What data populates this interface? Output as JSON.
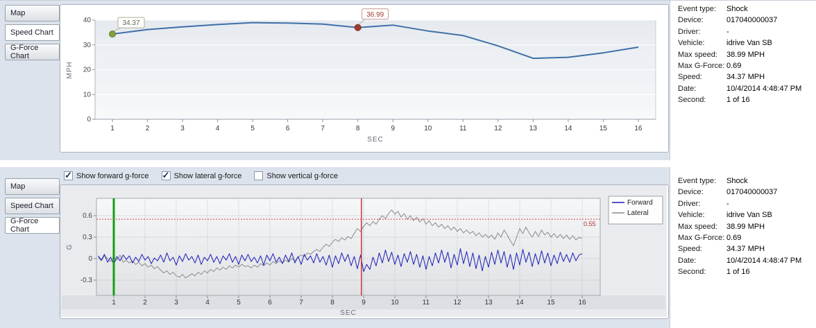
{
  "tabs": [
    "Map",
    "Speed Chart",
    "G-Force Chart"
  ],
  "top_panel": {
    "selected_tab": "Speed Chart"
  },
  "bottom_panel": {
    "selected_tab": "G-Force Chart",
    "checkboxes": [
      {
        "label": "Show forward g-force",
        "checked": true
      },
      {
        "label": "Show lateral g-force",
        "checked": true
      },
      {
        "label": "Show vertical g-force",
        "checked": false
      }
    ]
  },
  "info": {
    "rows": [
      {
        "label": "Event type:",
        "value": "Shock"
      },
      {
        "label": "Device:",
        "value": "017040000037"
      },
      {
        "label": "Driver:",
        "value": "-"
      },
      {
        "label": "Vehicle:",
        "value": "idrive Van SB"
      },
      {
        "label": "Max speed:",
        "value": "38.99 MPH"
      },
      {
        "label": "Max G-Force:",
        "value": "0.69"
      },
      {
        "label": "Speed:",
        "value": "34.37 MPH"
      },
      {
        "label": "Date:",
        "value": "10/4/2014 4:48:47 PM"
      },
      {
        "label": "Second:",
        "value": "1 of 16"
      }
    ]
  },
  "chart_data": [
    {
      "id": "speed",
      "type": "line",
      "title": "",
      "xlabel": "SEC",
      "ylabel": "MPH",
      "ylim": [
        0,
        40
      ],
      "yticks": [
        0,
        10,
        20,
        30,
        40
      ],
      "xticks": [
        1,
        2,
        3,
        4,
        5,
        6,
        7,
        8,
        9,
        10,
        11,
        12,
        13,
        14,
        15,
        16
      ],
      "x": [
        1,
        2,
        3,
        4,
        5,
        6,
        7,
        8,
        9,
        10,
        11,
        12,
        13,
        14,
        15,
        16
      ],
      "values": [
        34.37,
        36.2,
        37.3,
        38.2,
        38.99,
        38.8,
        38.4,
        36.99,
        38.0,
        35.6,
        33.8,
        29.6,
        24.6,
        25.0,
        26.8,
        29.1
      ],
      "line_color": "#3f6fa8",
      "annotations": [
        {
          "x": 1,
          "value": 34.37,
          "label": "34.37",
          "fill": "#82a03c",
          "stroke": "#5f7a2a",
          "box_border": "#a9b293",
          "text_color": "#5f6b4a"
        },
        {
          "x": 8,
          "value": 36.99,
          "label": "36.99",
          "fill": "#a23b32",
          "stroke": "#7c2a23",
          "box_border": "#c9918c",
          "text_color": "#a23b32"
        }
      ]
    },
    {
      "id": "gforce",
      "type": "line",
      "xlabel": "SEC",
      "ylabel": "G",
      "ylim": [
        -0.51,
        0.84
      ],
      "yticks": [
        -0.3,
        0,
        0.3,
        0.6
      ],
      "ytick_labels": [
        "-0.3",
        "0",
        "0.3",
        "0.6"
      ],
      "xticks": [
        1,
        2,
        3,
        4,
        5,
        6,
        7,
        8,
        9,
        10,
        11,
        12,
        13,
        14,
        15,
        16
      ],
      "x_start": 0.5,
      "x_end": 16,
      "legend_position": "right",
      "threshold": {
        "value": 0.55,
        "label": "0.55",
        "color": "#d04040"
      },
      "event_lines": [
        {
          "x": 1,
          "color": "#12a012",
          "width": 3
        },
        {
          "x": 8.93,
          "color": "#d23030",
          "width": 1.5
        }
      ],
      "series": [
        {
          "name": "Forward",
          "color": "#1c1cb8",
          "values": [
            0.04,
            -0.02,
            0.06,
            -0.05,
            0.02,
            -0.08,
            0.03,
            -0.03,
            0.05,
            -0.01,
            0.04,
            -0.06,
            0.02,
            -0.04,
            0.06,
            -0.02,
            0.03,
            -0.07,
            0.01,
            -0.03,
            0.05,
            -0.05,
            0.08,
            -0.03,
            0.02,
            -0.09,
            0.04,
            -0.04,
            0.07,
            -0.02,
            0.03,
            -0.06,
            0.05,
            -0.08,
            0.02,
            -0.03,
            0.06,
            -0.05,
            0.03,
            -0.07,
            0.04,
            -0.02,
            0.07,
            -0.05,
            0.03,
            -0.08,
            0.05,
            -0.03,
            0.06,
            -0.04,
            0.02,
            -0.06,
            0.04,
            -0.09,
            0.05,
            -0.03,
            0.07,
            -0.05,
            0.02,
            -0.07,
            0.05,
            -0.04,
            0.08,
            -0.06,
            0.03,
            -0.08,
            0.06,
            -0.02,
            0.04,
            -0.06,
            0.07,
            -0.05,
            0.03,
            -0.09,
            0.05,
            -0.12,
            0.04,
            -0.07,
            0.08,
            -0.04,
            0.06,
            -0.1,
            0.03,
            -0.14,
            0.05,
            -0.18,
            -0.08,
            -0.15,
            0.02,
            -0.1,
            0.08,
            -0.06,
            0.12,
            -0.04,
            0.09,
            -0.08,
            0.05,
            -0.11,
            0.07,
            -0.05,
            0.1,
            -0.08,
            0.06,
            -0.12,
            0.04,
            -0.15,
            0.03,
            -0.1,
            0.08,
            -0.06,
            0.12,
            -0.05,
            0.09,
            -0.13,
            0.06,
            -0.09,
            0.14,
            -0.07,
            0.1,
            -0.11,
            0.08,
            -0.14,
            0.05,
            -0.17,
            0.03,
            -0.12,
            0.09,
            -0.08,
            0.12,
            -0.06,
            0.1,
            -0.12,
            0.06,
            -0.15,
            0.08,
            -0.09,
            0.13,
            -0.05,
            0.09,
            -0.11,
            0.07,
            -0.08,
            0.11,
            -0.06,
            0.08,
            -0.1,
            0.05,
            -0.07,
            0.09,
            -0.04,
            0.06,
            -0.05,
            0.08,
            -0.03,
            0.05,
            0.07
          ]
        },
        {
          "name": "Lateral",
          "color": "#8b8b8b",
          "values": [
            0.02,
            -0.03,
            0.04,
            0.0,
            -0.04,
            0.03,
            -0.02,
            0.05,
            -0.05,
            -0.02,
            -0.06,
            -0.03,
            -0.08,
            -0.05,
            -0.1,
            -0.07,
            -0.12,
            -0.09,
            -0.14,
            -0.11,
            -0.16,
            -0.2,
            -0.17,
            -0.22,
            -0.19,
            -0.24,
            -0.26,
            -0.22,
            -0.27,
            -0.24,
            -0.21,
            -0.24,
            -0.19,
            -0.22,
            -0.17,
            -0.2,
            -0.15,
            -0.18,
            -0.13,
            -0.16,
            -0.12,
            -0.15,
            -0.1,
            -0.13,
            -0.09,
            -0.12,
            -0.08,
            -0.11,
            -0.1,
            -0.13,
            -0.09,
            -0.12,
            -0.07,
            -0.1,
            -0.06,
            -0.09,
            -0.04,
            -0.07,
            -0.03,
            -0.06,
            -0.02,
            -0.05,
            0.0,
            -0.03,
            0.02,
            0.05,
            0.03,
            0.08,
            0.06,
            0.1,
            0.13,
            0.1,
            0.16,
            0.2,
            0.17,
            0.23,
            0.27,
            0.24,
            0.29,
            0.26,
            0.31,
            0.28,
            0.35,
            0.42,
            0.38,
            0.45,
            0.5,
            0.46,
            0.52,
            0.48,
            0.55,
            0.6,
            0.56,
            0.63,
            0.68,
            0.62,
            0.66,
            0.58,
            0.63,
            0.55,
            0.6,
            0.53,
            0.58,
            0.51,
            0.56,
            0.48,
            0.53,
            0.46,
            0.5,
            0.44,
            0.48,
            0.42,
            0.46,
            0.4,
            0.44,
            0.38,
            0.42,
            0.36,
            0.4,
            0.35,
            0.38,
            0.32,
            0.36,
            0.3,
            0.34,
            0.29,
            0.33,
            0.27,
            0.36,
            0.3,
            0.4,
            0.33,
            0.25,
            0.18,
            0.3,
            0.42,
            0.35,
            0.44,
            0.36,
            0.3,
            0.38,
            0.31,
            0.4,
            0.33,
            0.37,
            0.3,
            0.35,
            0.29,
            0.34,
            0.28,
            0.33,
            0.27,
            0.32,
            0.26,
            0.3,
            0.28
          ]
        }
      ]
    }
  ]
}
